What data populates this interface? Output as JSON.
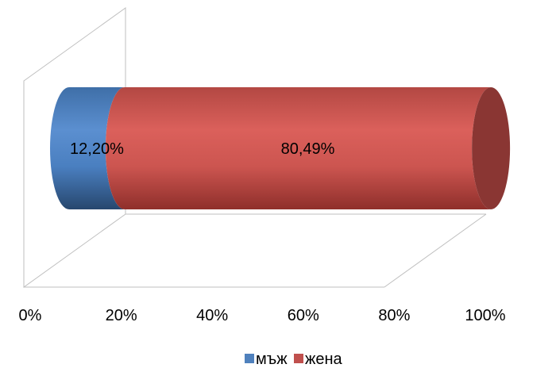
{
  "chart_data": {
    "type": "bar",
    "orientation": "horizontal",
    "stacked": true,
    "percent_stacked": true,
    "style": "3d-cylinder",
    "categories": [
      ""
    ],
    "series": [
      {
        "name": "мъж",
        "values": [
          12.2
        ],
        "label": "12,20%",
        "color": "#4F81BD"
      },
      {
        "name": "жена",
        "values": [
          80.49
        ],
        "label": "80,49%",
        "color": "#C0504D"
      }
    ],
    "xlim": [
      0,
      100
    ],
    "x_ticks": [
      {
        "value": 0,
        "label": "0%"
      },
      {
        "value": 20,
        "label": "20%"
      },
      {
        "value": 40,
        "label": "40%"
      },
      {
        "value": 60,
        "label": "60%"
      },
      {
        "value": 80,
        "label": "80%"
      },
      {
        "value": 100,
        "label": "100%"
      }
    ],
    "grid": false,
    "legend": {
      "position": "bottom",
      "entries": [
        "мъж",
        "жена"
      ]
    }
  }
}
